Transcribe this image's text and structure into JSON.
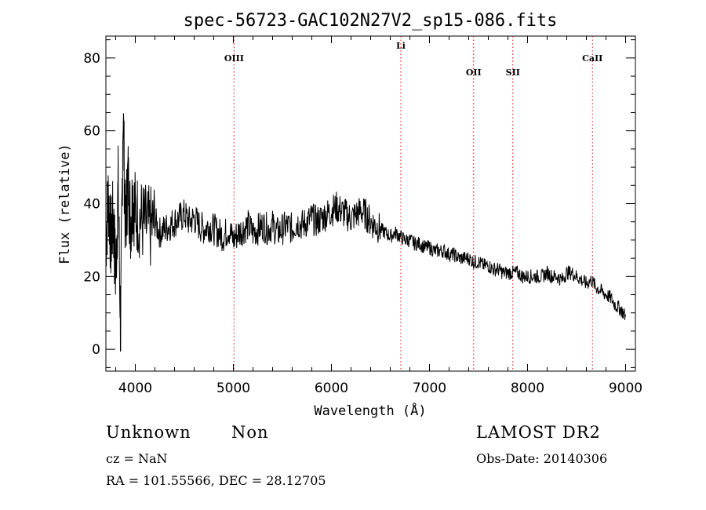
{
  "chart_data": {
    "type": "line",
    "title": "spec-56723-GAC102N27V2_sp15-086.fits",
    "xlabel": "Wavelength (Å)",
    "ylabel": "Flux (relative)",
    "xlim": [
      3700,
      9100
    ],
    "ylim": [
      -6,
      86
    ],
    "xticks": [
      4000,
      5000,
      6000,
      7000,
      8000,
      9000
    ],
    "yticks": [
      0,
      20,
      40,
      60,
      80
    ],
    "grid": false,
    "line_color": "#000000",
    "marker_color": "#ff0000",
    "lines": [
      {
        "name": "OIII",
        "x": 5007
      },
      {
        "name": "Li",
        "x": 6708
      },
      {
        "name": "OII",
        "x": 7450
      },
      {
        "name": "SII",
        "x": 7850
      },
      {
        "name": "CaII",
        "x": 8662
      }
    ],
    "series": [
      {
        "x": [
          3700,
          3725,
          3750,
          3775,
          3800,
          3825,
          3850,
          3875,
          3900,
          3925,
          3950,
          3975,
          4000,
          4050,
          4100,
          4150,
          4200,
          4250,
          4300,
          4350,
          4400,
          4450,
          4500,
          4550,
          4600,
          4650,
          4700,
          4750,
          4800,
          4850,
          4900,
          4950,
          5000,
          5050,
          5100,
          5150,
          5200,
          5250,
          5300,
          5350,
          5400,
          5450,
          5500,
          5550,
          5600,
          5650,
          5700,
          5750,
          5800,
          5850,
          5900,
          5950,
          6000,
          6050,
          6100,
          6150,
          6200,
          6250,
          6300,
          6350,
          6400,
          6450,
          6500,
          6550,
          6600,
          6650,
          6700,
          6750,
          6800,
          6850,
          6900,
          6950,
          7000,
          7050,
          7100,
          7150,
          7200,
          7250,
          7300,
          7350,
          7400,
          7450,
          7500,
          7550,
          7600,
          7650,
          7700,
          7750,
          7800,
          7850,
          7900,
          7950,
          8000,
          8050,
          8100,
          8150,
          8200,
          8250,
          8300,
          8350,
          8400,
          8450,
          8500,
          8550,
          8600,
          8650,
          8700,
          8750,
          8800,
          8850,
          8900,
          8950,
          9000
        ],
        "values": [
          30,
          42,
          30,
          36,
          20,
          45,
          5,
          66,
          32,
          48,
          35,
          42,
          38,
          36,
          34,
          33,
          35,
          32,
          33,
          34,
          35,
          36,
          37,
          35,
          36,
          34,
          33,
          34,
          33,
          32,
          31,
          33,
          30,
          32,
          33,
          34,
          32,
          33,
          34,
          33,
          34,
          32,
          33,
          34,
          33,
          35,
          34,
          35,
          36,
          35,
          36,
          37,
          38,
          39,
          38,
          37,
          36,
          37,
          38,
          37,
          35,
          34,
          33,
          32,
          31,
          32,
          31,
          30,
          30,
          29,
          29,
          28,
          28,
          27,
          27,
          27,
          26,
          26,
          25,
          25,
          25,
          24,
          24,
          23,
          23,
          22,
          22,
          21,
          21,
          21,
          21,
          20,
          20,
          20,
          20,
          20,
          21,
          20,
          20,
          19,
          21,
          21,
          20,
          19,
          18,
          19,
          17,
          16,
          15,
          14,
          12,
          11,
          9
        ]
      }
    ]
  },
  "footer": {
    "object_class": "Unknown",
    "subclass": "Non",
    "cz": "cz = NaN",
    "coords": "RA = 101.55566, DEC =  28.12705",
    "survey": "LAMOST DR2",
    "obs_date": "Obs-Date: 20140306"
  }
}
